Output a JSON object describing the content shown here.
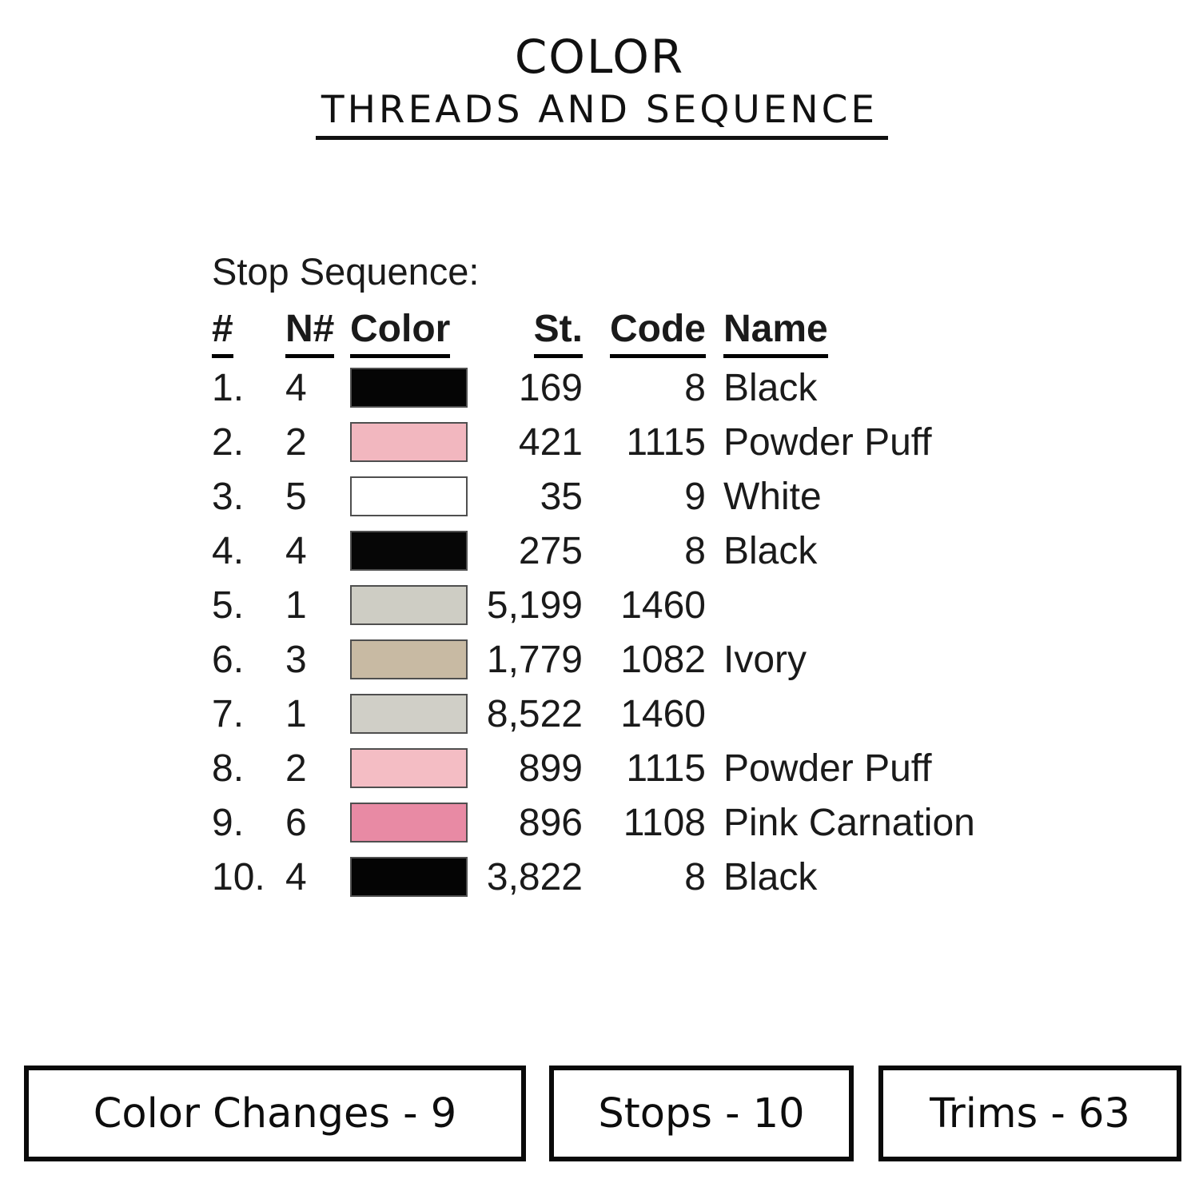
{
  "title": {
    "line1": "COLOR",
    "line2": "THREADS AND SEQUENCE"
  },
  "table": {
    "heading": "Stop Sequence:",
    "columns": {
      "num": "#",
      "n": "N#",
      "color": "Color",
      "st": "St.",
      "code": "Code",
      "name": "Name"
    },
    "rows": [
      {
        "num": "1.",
        "n": "4",
        "color_hex": "#050505",
        "st": "169",
        "code": "8",
        "name": "Black"
      },
      {
        "num": "2.",
        "n": "2",
        "color_hex": "#F2B7BF",
        "st": "421",
        "code": "1115",
        "name": "Powder Puff"
      },
      {
        "num": "3.",
        "n": "5",
        "color_hex": "#FFFFFF",
        "st": "35",
        "code": "9",
        "name": "White"
      },
      {
        "num": "4.",
        "n": "4",
        "color_hex": "#060606",
        "st": "275",
        "code": "8",
        "name": "Black"
      },
      {
        "num": "5.",
        "n": "1",
        "color_hex": "#CECDC4",
        "st": "5,199",
        "code": "1460",
        "name": ""
      },
      {
        "num": "6.",
        "n": "3",
        "color_hex": "#C8BAA3",
        "st": "1,779",
        "code": "1082",
        "name": "Ivory"
      },
      {
        "num": "7.",
        "n": "1",
        "color_hex": "#D0CFC7",
        "st": "8,522",
        "code": "1460",
        "name": ""
      },
      {
        "num": "8.",
        "n": "2",
        "color_hex": "#F4BDC4",
        "st": "899",
        "code": "1115",
        "name": "Powder Puff"
      },
      {
        "num": "9.",
        "n": "6",
        "color_hex": "#E88AA4",
        "st": "896",
        "code": "1108",
        "name": "Pink Carnation"
      },
      {
        "num": "10.",
        "n": "4",
        "color_hex": "#040404",
        "st": "3,822",
        "code": "8",
        "name": "Black"
      }
    ]
  },
  "stats": [
    {
      "label": "Color Changes - 9"
    },
    {
      "label": "Stops - 10"
    },
    {
      "label": "Trims - 63"
    }
  ]
}
